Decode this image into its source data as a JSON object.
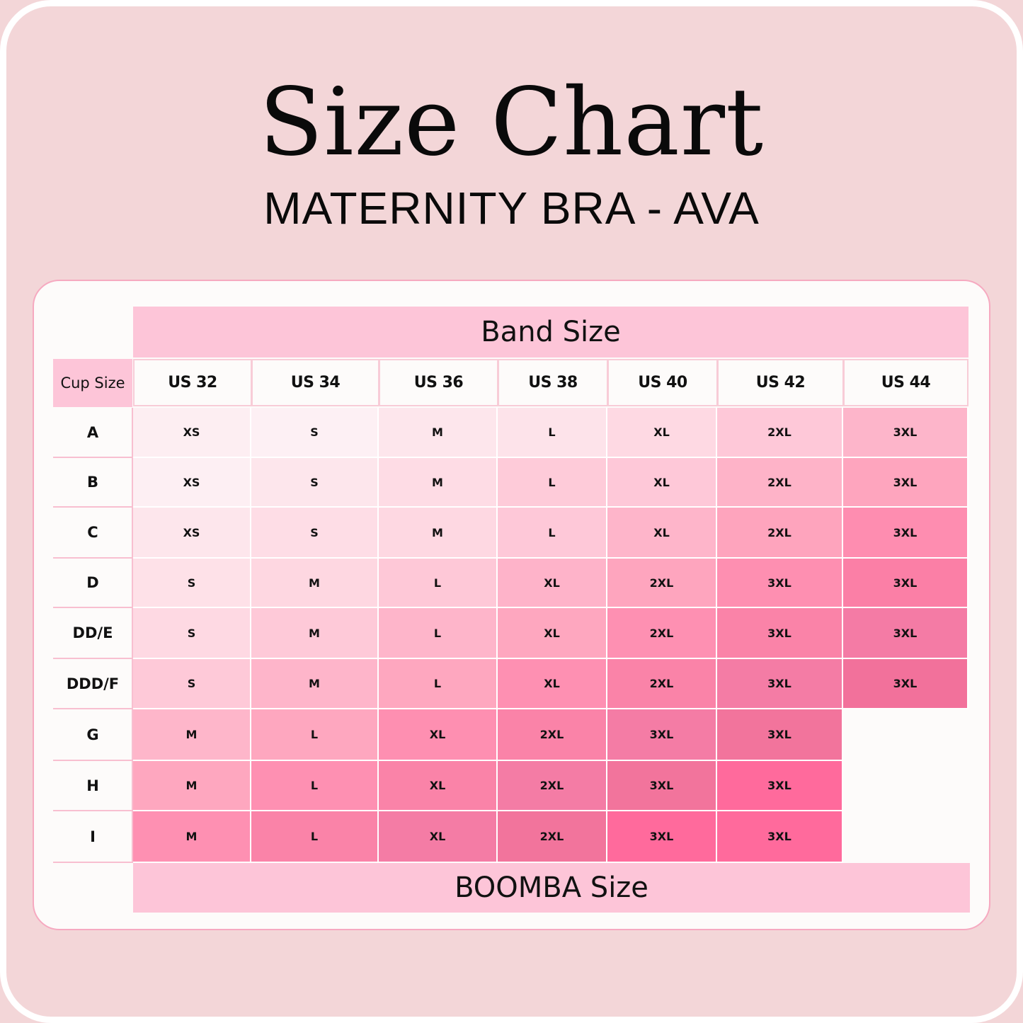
{
  "title": "Size Chart",
  "subtitle": "MATERNITY BRA - AVA",
  "table": {
    "band_header": "Band Size",
    "cup_header": "Cup Size",
    "footer": "BOOMBA Size",
    "columns": [
      "US 32",
      "US 34",
      "US 36",
      "US 38",
      "US 40",
      "US 42",
      "US 44"
    ],
    "rows": [
      {
        "cup": "A",
        "sizes": [
          "XS",
          "S",
          "M",
          "L",
          "XL",
          "2XL",
          "3XL"
        ]
      },
      {
        "cup": "B",
        "sizes": [
          "XS",
          "S",
          "M",
          "L",
          "XL",
          "2XL",
          "3XL"
        ]
      },
      {
        "cup": "C",
        "sizes": [
          "XS",
          "S",
          "M",
          "L",
          "XL",
          "2XL",
          "3XL"
        ]
      },
      {
        "cup": "D",
        "sizes": [
          "S",
          "M",
          "L",
          "XL",
          "2XL",
          "3XL",
          "3XL"
        ]
      },
      {
        "cup": "DD/E",
        "sizes": [
          "S",
          "M",
          "L",
          "XL",
          "2XL",
          "3XL",
          "3XL"
        ]
      },
      {
        "cup": "DDD/F",
        "sizes": [
          "S",
          "M",
          "L",
          "XL",
          "2XL",
          "3XL",
          "3XL"
        ]
      },
      {
        "cup": "G",
        "sizes": [
          "M",
          "L",
          "XL",
          "2XL",
          "3XL",
          "3XL",
          ""
        ]
      },
      {
        "cup": "H",
        "sizes": [
          "M",
          "L",
          "XL",
          "2XL",
          "3XL",
          "3XL",
          ""
        ]
      },
      {
        "cup": "I",
        "sizes": [
          "M",
          "L",
          "XL",
          "2XL",
          "3XL",
          "3XL",
          ""
        ]
      }
    ],
    "cell_colors": [
      [
        "#fdeef2",
        "#fdf0f4",
        "#fde6ec",
        "#fde3ea",
        "#fed9e3",
        "#fec8d8",
        "#fdb5ca"
      ],
      [
        "#fdeff3",
        "#fde6ec",
        "#fedce5",
        "#fecbd9",
        "#fec8d8",
        "#feb3c8",
        "#fea5be"
      ],
      [
        "#fde6ec",
        "#fedde6",
        "#fed8e2",
        "#fec8d8",
        "#feb5ca",
        "#fea4bd",
        "#fe8db0"
      ],
      [
        "#fee1e8",
        "#fed7e1",
        "#fec8d7",
        "#feb3c9",
        "#fea5be",
        "#fe8fb1",
        "#fb7fa6"
      ],
      [
        "#fed9e3",
        "#fec9d8",
        "#feb5ca",
        "#fea7bf",
        "#fe90b2",
        "#fa83a8",
        "#f47ba5"
      ],
      [
        "#fec9d8",
        "#feb5ca",
        "#fea7bf",
        "#fe90b2",
        "#fa83a8",
        "#f47ca5",
        "#f2719b"
      ],
      [
        "#feb6ca",
        "#fea7bf",
        "#fe8fb1",
        "#fa83a8",
        "#f47ca5",
        "#f2749c",
        ""
      ],
      [
        "#fea7bf",
        "#fe90b2",
        "#fa83a8",
        "#f47ca5",
        "#f2749c",
        "#ff6a9c",
        ""
      ],
      [
        "#fe90b2",
        "#fa83a8",
        "#f47ca5",
        "#f2749c",
        "#ff6a9c",
        "#ff6a9c",
        ""
      ]
    ]
  },
  "colors": {
    "background": "#f3d6d8",
    "card": "#fdfbfa",
    "header_pink": "#fdc5d8",
    "accent_deep": "#ff6a9c"
  }
}
